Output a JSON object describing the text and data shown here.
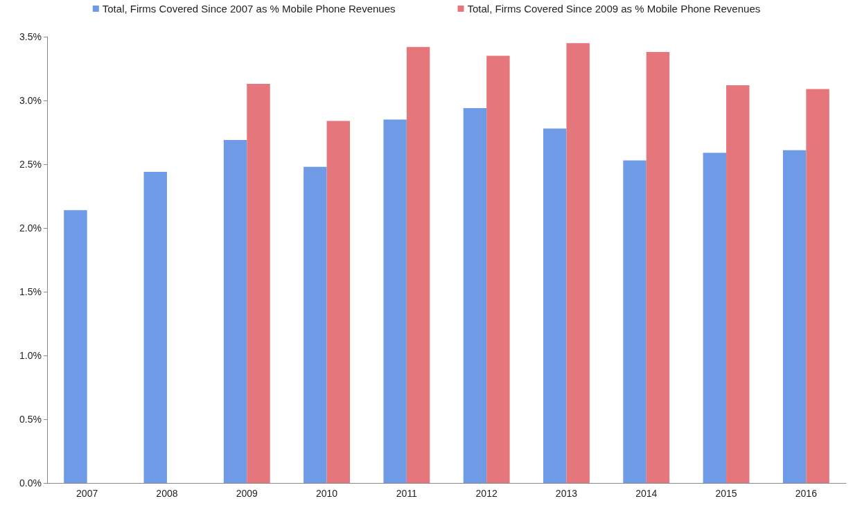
{
  "chart_data": {
    "type": "bar",
    "categories": [
      "2007",
      "2008",
      "2009",
      "2010",
      "2011",
      "2012",
      "2013",
      "2014",
      "2015",
      "2016"
    ],
    "series": [
      {
        "name": "Total, Firms Covered Since 2007 as % Mobile Phone Revenues",
        "color": "#6f9be6",
        "values": [
          2.14,
          2.44,
          2.69,
          2.48,
          2.85,
          2.94,
          2.78,
          2.53,
          2.59,
          2.61
        ]
      },
      {
        "name": "Total, Firms Covered Since 2009 as % Mobile Phone Revenues",
        "color": "#e5767b",
        "values": [
          null,
          null,
          3.13,
          2.84,
          3.42,
          3.35,
          3.45,
          3.38,
          3.12,
          3.09
        ]
      }
    ],
    "ylim": [
      0,
      3.5
    ],
    "yticks": [
      {
        "value": 0,
        "label": "0.0%"
      },
      {
        "value": 0.5,
        "label": "0.5%"
      },
      {
        "value": 1,
        "label": "1.0%"
      },
      {
        "value": 1.5,
        "label": "1.5%"
      },
      {
        "value": 2,
        "label": "2.0%"
      },
      {
        "value": 2.5,
        "label": "2.5%"
      },
      {
        "value": 3,
        "label": "3.0%"
      },
      {
        "value": 3.5,
        "label": "3.5%"
      }
    ],
    "grid": false,
    "legend": "top"
  }
}
